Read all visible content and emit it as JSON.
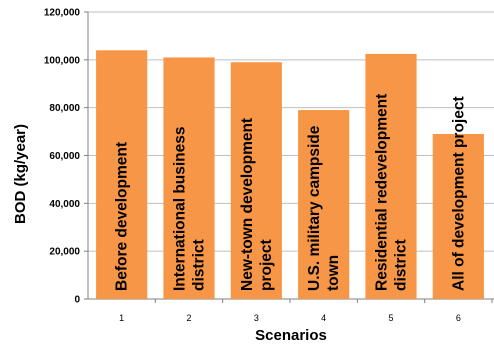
{
  "chart_data": {
    "type": "bar",
    "categories": [
      "1",
      "2",
      "3",
      "4",
      "5",
      "6"
    ],
    "values": [
      104000,
      101000,
      99000,
      79000,
      102500,
      69000
    ],
    "bar_labels": [
      [
        "Before development"
      ],
      [
        "International business",
        "district"
      ],
      [
        "New-town development",
        "project"
      ],
      [
        "U.S. military campside",
        "town"
      ],
      [
        "Residential redevelopment",
        "district"
      ],
      [
        "All of development project"
      ]
    ],
    "title": "",
    "xlabel": "Scenarios",
    "ylabel": "BOD (kg/year)",
    "ylim": [
      0,
      120000
    ],
    "yticks": [
      0,
      20000,
      40000,
      60000,
      80000,
      100000,
      120000
    ],
    "ytick_labels": [
      "0",
      "20,000",
      "40,000",
      "60,000",
      "80,000",
      "100,000",
      "120,000"
    ],
    "grid": true,
    "bar_color": "#F79646",
    "grid_color": "#BFBFBF"
  }
}
